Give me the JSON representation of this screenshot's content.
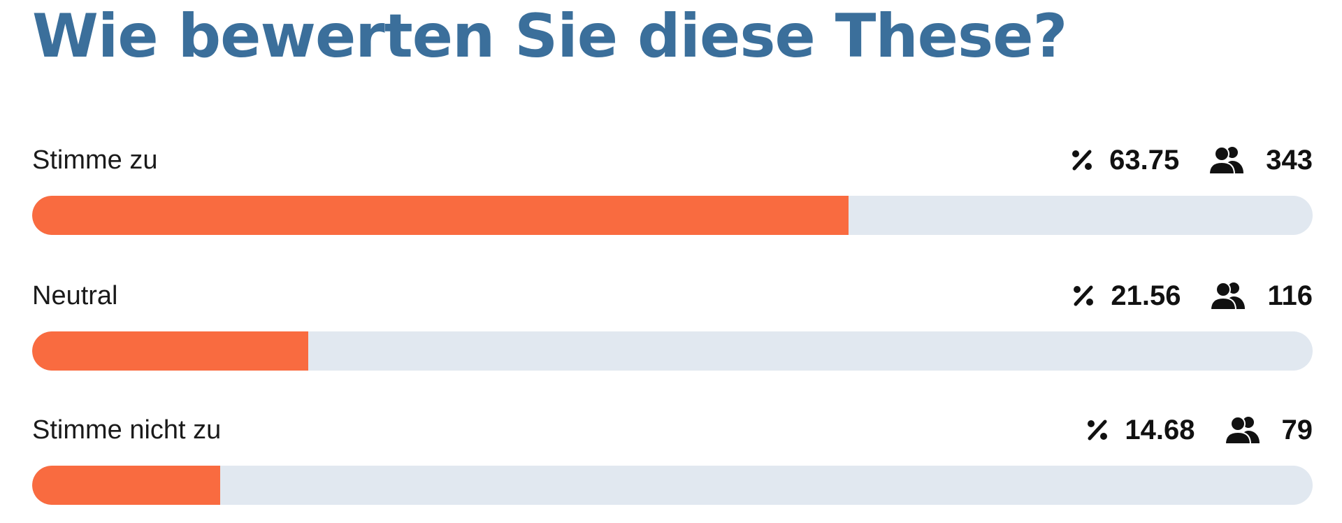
{
  "title": "Wie bewerten Sie diese These?",
  "colors": {
    "accent": "#f96b40",
    "track": "#e1e8f0",
    "title": "#3b6f9b"
  },
  "icons": {
    "percent": "percent-icon",
    "votes": "users-icon"
  },
  "options": [
    {
      "label": "Stimme zu",
      "percent": "63.75",
      "votes": "343",
      "fill_fraction": 0.6375
    },
    {
      "label": "Neutral",
      "percent": "21.56",
      "votes": "116",
      "fill_fraction": 0.2156
    },
    {
      "label": "Stimme nicht zu",
      "percent": "14.68",
      "votes": "79",
      "fill_fraction": 0.1468
    }
  ]
}
